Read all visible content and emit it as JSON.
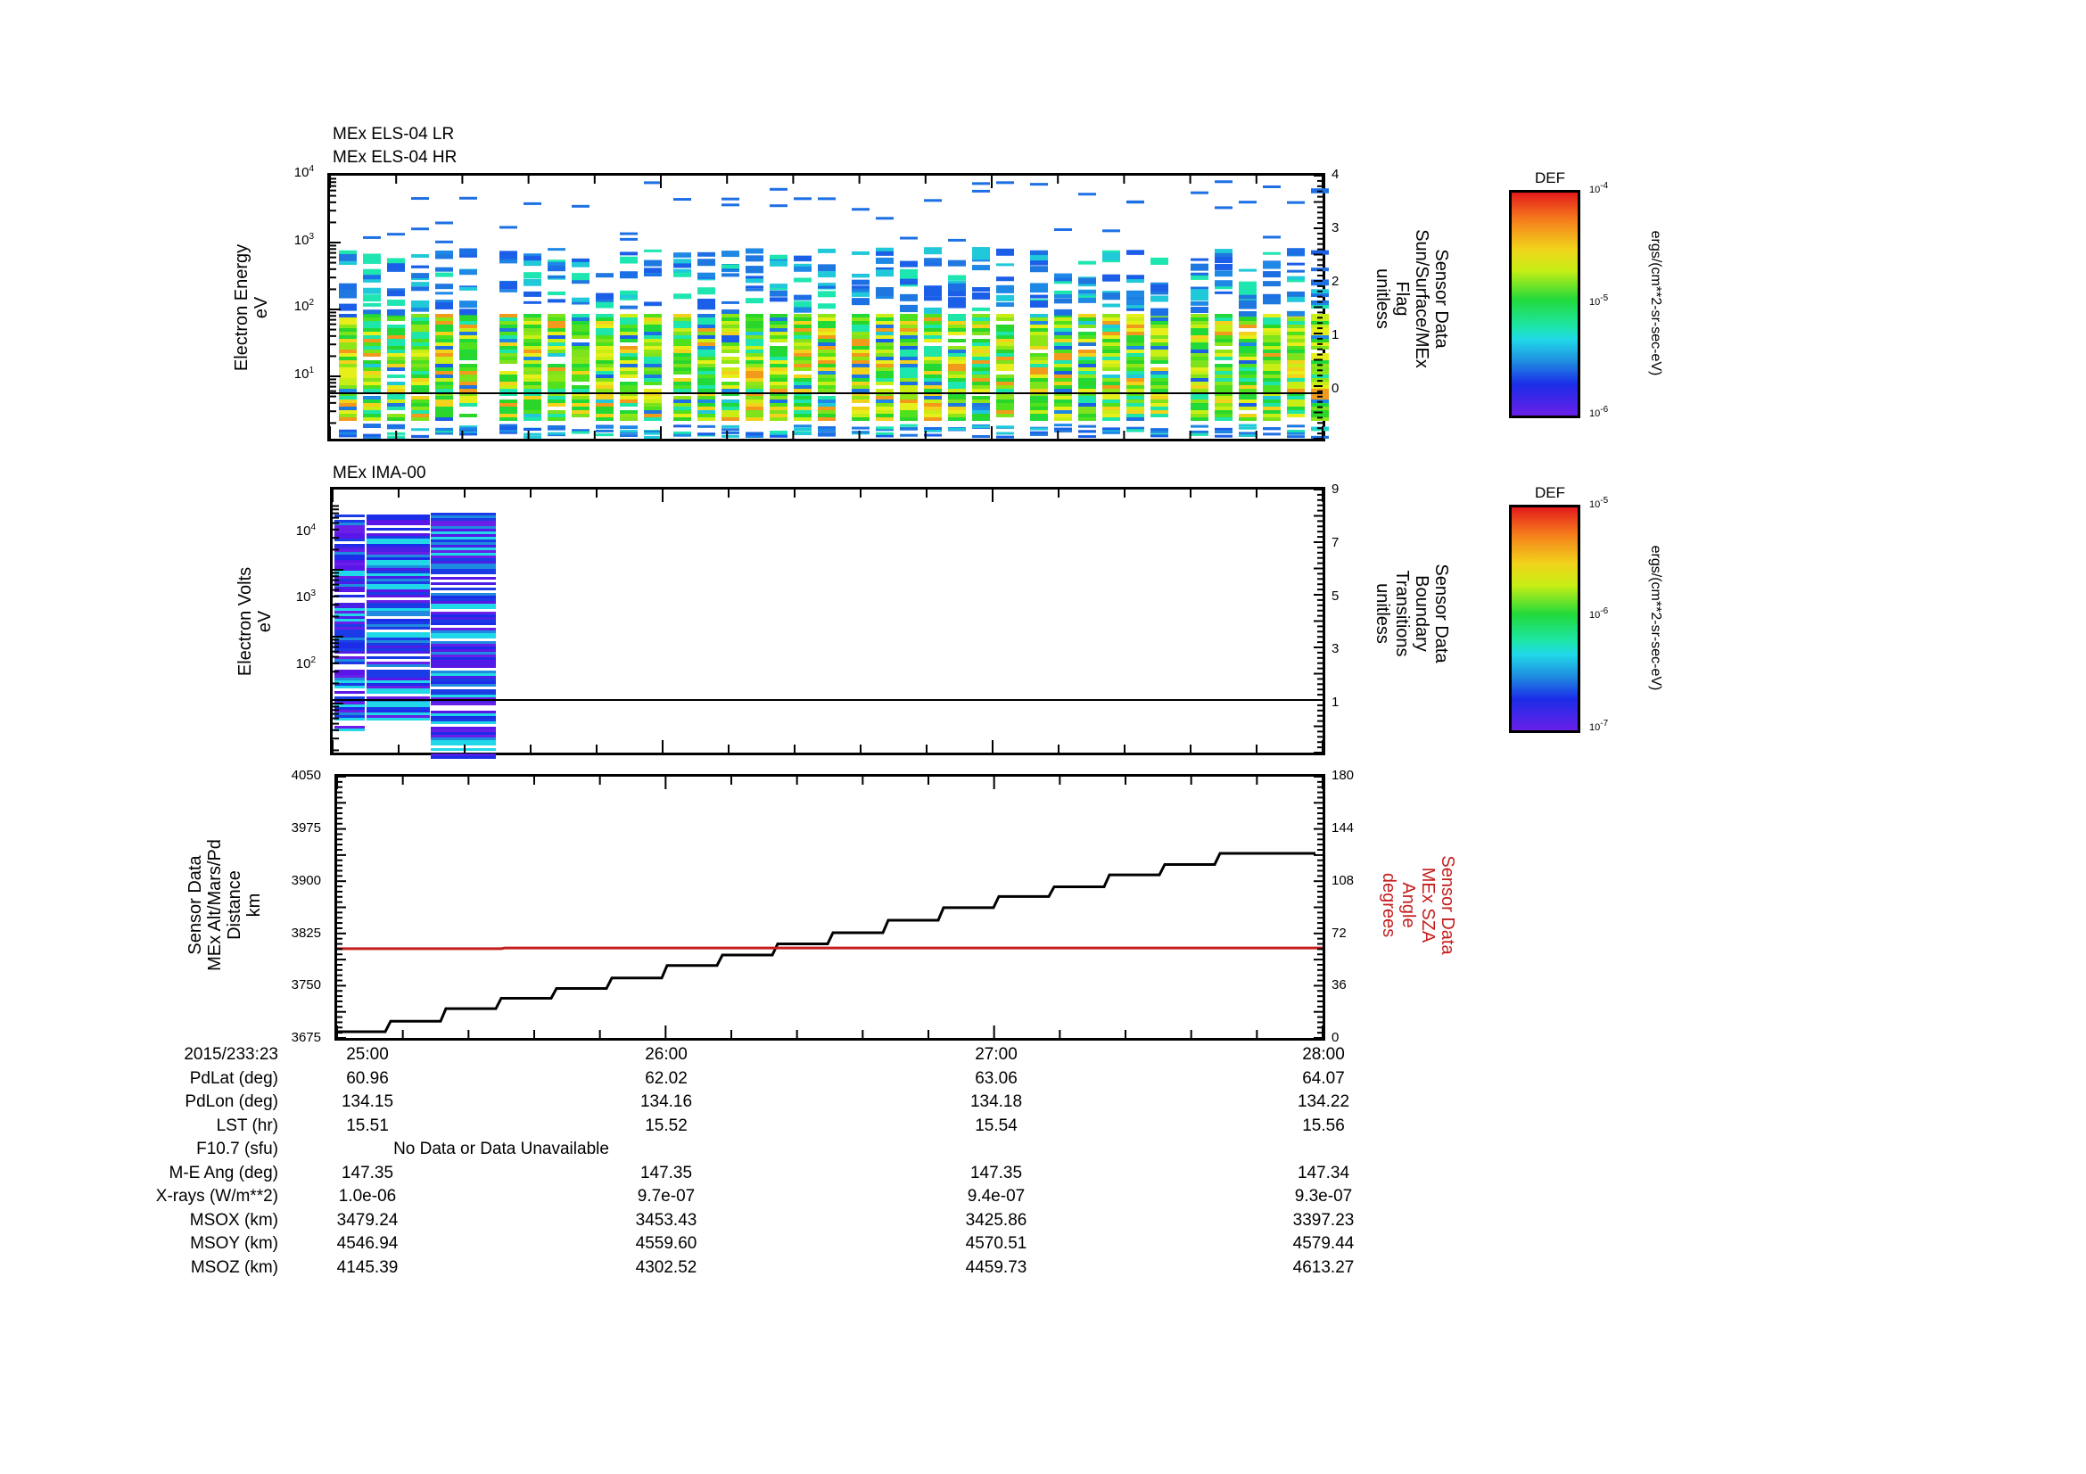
{
  "panels": [
    {
      "id": "els",
      "titles": [
        "MEx ELS-04 LR",
        "MEx ELS-04 HR"
      ],
      "left_axis": {
        "label_lines": [
          "Electron Energy",
          "eV"
        ],
        "scale": "log",
        "ticks": [
          {
            "base": "10",
            "exp": "4"
          },
          {
            "base": "10",
            "exp": "3"
          },
          {
            "base": "10",
            "exp": "2"
          },
          {
            "base": "10",
            "exp": "1"
          }
        ]
      },
      "right_axis": {
        "label_lines": [
          "Sensor Data",
          "Sun/Surface/MEx",
          "Flag",
          "unitless"
        ],
        "ticks": [
          "4",
          "3",
          "2",
          "1",
          "0"
        ]
      },
      "colorbar": {
        "title": "DEF",
        "ticks": [
          {
            "base": "10",
            "exp": "-4"
          },
          {
            "base": "10",
            "exp": "-5"
          },
          {
            "base": "10",
            "exp": "-6"
          }
        ],
        "units": "ergs/(cm**2-sr-sec-eV)"
      }
    },
    {
      "id": "ima",
      "titles": [
        "MEx IMA-00"
      ],
      "left_axis": {
        "label_lines": [
          "Electron Volts",
          "eV"
        ],
        "scale": "log",
        "ticks": [
          {
            "base": "10",
            "exp": "4"
          },
          {
            "base": "10",
            "exp": "3"
          },
          {
            "base": "10",
            "exp": "2"
          }
        ]
      },
      "right_axis": {
        "label_lines": [
          "Sensor Data",
          "Boundary",
          "Transitions",
          "unitless"
        ],
        "ticks": [
          "9",
          "7",
          "5",
          "3",
          "1"
        ]
      },
      "colorbar": {
        "title": "DEF",
        "ticks": [
          {
            "base": "10",
            "exp": "-5"
          },
          {
            "base": "10",
            "exp": "-6"
          },
          {
            "base": "10",
            "exp": "-7"
          }
        ],
        "units": "ergs/(cm**2-sr-sec-eV)"
      }
    },
    {
      "id": "alt",
      "left_axis": {
        "label_lines": [
          "Sensor Data",
          "MEx Alt/Mars/Pd",
          "Distance",
          "km"
        ],
        "ticks": [
          "4050",
          "3975",
          "3900",
          "3825",
          "3750",
          "3675"
        ]
      },
      "right_axis": {
        "label_lines": [
          "Sensor Data",
          "MEx SZA",
          "Angle",
          "degrees"
        ],
        "ticks": [
          "180",
          "144",
          "108",
          "72",
          "36",
          "0"
        ],
        "color": "#c41e1e"
      }
    }
  ],
  "ephemeris": {
    "rows": [
      {
        "label": "2015/233:23",
        "values": [
          "25:00",
          "26:00",
          "27:00",
          "28:00"
        ]
      },
      {
        "label": "PdLat (deg)",
        "values": [
          "60.96",
          "62.02",
          "63.06",
          "64.07"
        ]
      },
      {
        "label": "PdLon (deg)",
        "values": [
          "134.15",
          "134.16",
          "134.18",
          "134.22"
        ]
      },
      {
        "label": "LST (hr)",
        "values": [
          "15.51",
          "15.52",
          "15.54",
          "15.56"
        ]
      },
      {
        "label": "F10.7 (sfu)",
        "span_text": "No Data or Data Unavailable"
      },
      {
        "label": "M-E Ang (deg)",
        "values": [
          "147.35",
          "147.35",
          "147.35",
          "147.34"
        ]
      },
      {
        "label": "X-rays (W/m**2)",
        "values": [
          "1.0e-06",
          "9.7e-07",
          "9.4e-07",
          "9.3e-07"
        ]
      },
      {
        "label": "MSOX (km)",
        "values": [
          "3479.24",
          "3453.43",
          "3425.86",
          "3397.23"
        ]
      },
      {
        "label": "MSOY (km)",
        "values": [
          "4546.94",
          "4559.60",
          "4570.51",
          "4579.44"
        ]
      },
      {
        "label": "MSOZ (km)",
        "values": [
          "4145.39",
          "4302.52",
          "4459.73",
          "4613.27"
        ]
      }
    ]
  },
  "chart_data": [
    {
      "type": "heatmap",
      "title": "MEx ELS-04 LR / MEx ELS-04 HR",
      "xlabel": "2015/233:23 (MM:SS)",
      "ylabel": "Electron Energy (eV)",
      "yscale": "log",
      "ylim": [
        1,
        10000
      ],
      "x_ticks": [
        "25:00",
        "26:00",
        "27:00",
        "28:00"
      ],
      "colorbar": {
        "label": "DEF ergs/(cm**2-sr-sec-eV)",
        "range": [
          1e-06,
          0.0001
        ]
      },
      "description": "Spectrogram of ~36 sweep columns in 6 groups; dense green/yellow DEF (~1e-5 to 5e-5) between ~5 eV and ~150 eV, sparse blue (~3e-6) returns above 150 eV and below 5 eV",
      "overlay": {
        "name": "Sun/Surface/MEx Flag",
        "axis": "right",
        "ylim": [
          -0.9,
          4
        ],
        "values": [
          0,
          0,
          0,
          0
        ],
        "x": [
          "25:00",
          "26:00",
          "27:00",
          "28:00"
        ]
      }
    },
    {
      "type": "heatmap",
      "title": "MEx IMA-00",
      "xlabel": "2015/233:23 (MM:SS)",
      "ylabel": "Electron Volts (eV)",
      "yscale": "log",
      "ylim": [
        8,
        30000
      ],
      "x_ticks": [
        "25:00",
        "26:00",
        "27:00",
        "28:00"
      ],
      "colorbar": {
        "label": "DEF ergs/(cm**2-sr-sec-eV)",
        "range": [
          1e-07,
          1e-05
        ]
      },
      "description": "Three ion sweep columns between 25:00 and ~25:30 spanning ~10 eV to ~15000 eV, mostly violet/blue DEF (~1e-7 to 5e-7); no data afterwards",
      "overlay": {
        "name": "Boundary Transitions",
        "axis": "right",
        "ylim": [
          -1,
          9
        ],
        "values": [
          1,
          1,
          1,
          1
        ],
        "x": [
          "25:00",
          "26:00",
          "27:00",
          "28:00"
        ]
      }
    },
    {
      "type": "line",
      "title": "",
      "xlabel": "2015/233:23 (MM:SS)",
      "x_ticks": [
        "25:00",
        "26:00",
        "27:00",
        "28:00"
      ],
      "series": [
        {
          "name": "MEx Alt/Mars/Pd Distance (km)",
          "axis": "left",
          "ylim": [
            3675,
            4050
          ],
          "color": "#000000",
          "x_min": [
            0,
            0.17,
            0.33,
            0.5,
            0.67,
            0.83,
            1.0,
            1.17,
            1.33,
            1.5,
            1.67,
            1.83,
            2.0,
            2.17,
            2.33,
            2.5,
            2.67,
            2.83,
            3.0
          ],
          "values": [
            3684,
            3699,
            3717,
            3732,
            3746,
            3761,
            3779,
            3794,
            3810,
            3826,
            3844,
            3862,
            3878,
            3892,
            3909,
            3924,
            3940,
            3940,
            3940
          ]
        },
        {
          "name": "MEx SZA Angle (degrees)",
          "axis": "right",
          "ylim": [
            0,
            180
          ],
          "color": "#c41e1e",
          "x_min": [
            0,
            0.5,
            1.0,
            2.0,
            3.0
          ],
          "values": [
            61.5,
            62.0,
            62.0,
            62.0,
            62.0
          ]
        }
      ]
    }
  ]
}
